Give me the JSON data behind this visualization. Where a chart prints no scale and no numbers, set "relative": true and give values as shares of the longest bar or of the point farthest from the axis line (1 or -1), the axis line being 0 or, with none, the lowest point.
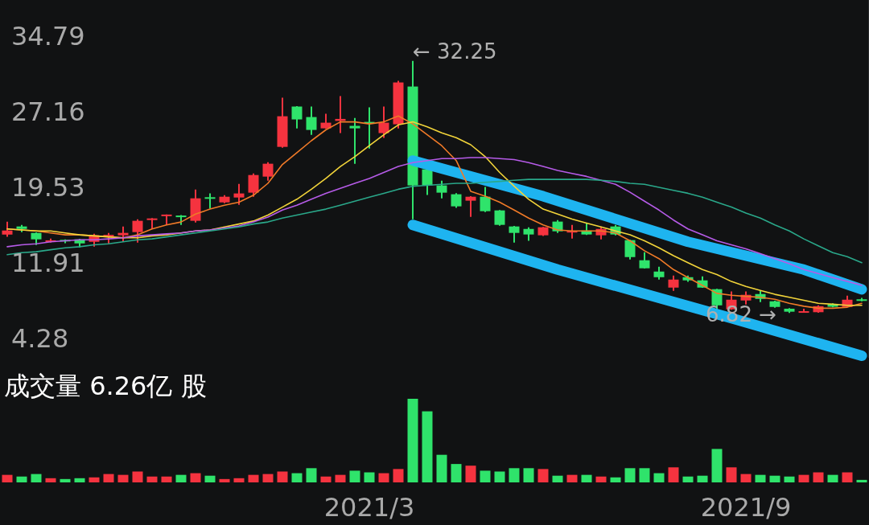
{
  "chart_data": [
    {
      "type": "candlestick",
      "categories": [
        null,
        null,
        null,
        null,
        null,
        null,
        null,
        null,
        null,
        null,
        null,
        null,
        null,
        null,
        null,
        null,
        null,
        null,
        null,
        null,
        null,
        null,
        null,
        null,
        null,
        "2021/3",
        null,
        null,
        null,
        null,
        null,
        null,
        null,
        null,
        null,
        null,
        null,
        null,
        null,
        null,
        null,
        null,
        null,
        null,
        null,
        null,
        null,
        null,
        null,
        null,
        null,
        "2021/9",
        null,
        null,
        null,
        null,
        null,
        null,
        null,
        null
      ],
      "ylim": [
        2.3,
        38.4
      ],
      "yticks": [
        34.79,
        27.16,
        19.53,
        11.91,
        4.28
      ],
      "ohlc": [
        [
          14.73,
          16.03,
          14.5,
          15.14
        ],
        [
          15.55,
          15.71,
          14.98,
          15.3
        ],
        [
          14.9,
          14.95,
          13.68,
          14.25
        ],
        [
          14.1,
          14.33,
          13.92,
          14.15
        ],
        [
          14.2,
          14.25,
          13.85,
          14.1
        ],
        [
          14.25,
          14.3,
          13.44,
          13.84
        ],
        [
          14.0,
          14.82,
          13.52,
          14.66
        ],
        [
          14.6,
          14.9,
          13.84,
          14.7
        ],
        [
          14.66,
          15.55,
          14.0,
          14.9
        ],
        [
          14.98,
          16.28,
          13.92,
          16.12
        ],
        [
          16.2,
          16.4,
          15.3,
          16.36
        ],
        [
          16.6,
          16.77,
          15.7,
          16.75
        ],
        [
          16.65,
          16.7,
          15.7,
          16.5
        ],
        [
          16.12,
          19.28,
          15.95,
          18.39
        ],
        [
          18.5,
          18.88,
          17.34,
          18.4
        ],
        [
          17.98,
          18.7,
          17.9,
          18.55
        ],
        [
          18.47,
          19.85,
          17.74,
          18.88
        ],
        [
          18.96,
          20.9,
          18.55,
          20.74
        ],
        [
          20.58,
          22.04,
          20.17,
          21.88
        ],
        [
          23.58,
          28.54,
          23.5,
          26.67
        ],
        [
          27.65,
          27.7,
          25.45,
          26.35
        ],
        [
          26.59,
          27.65,
          24.8,
          25.29
        ],
        [
          25.45,
          26.92,
          25.4,
          26.02
        ],
        [
          26.2,
          28.7,
          24.97,
          26.4
        ],
        [
          25.7,
          26.5,
          21.88,
          25.45
        ],
        [
          26.1,
          27.57,
          23.42,
          25.95
        ],
        [
          24.97,
          27.65,
          24.48,
          26.02
        ],
        [
          25.86,
          30.24,
          25.45,
          30.08
        ],
        [
          29.67,
          32.25,
          16.28,
          19.69
        ],
        [
          21.31,
          21.4,
          18.72,
          19.69
        ],
        [
          19.69,
          20.17,
          18.39,
          18.96
        ],
        [
          18.8,
          18.9,
          17.42,
          17.58
        ],
        [
          18.15,
          18.6,
          16.52,
          18.55
        ],
        [
          18.55,
          19.53,
          17.0,
          17.09
        ],
        [
          17.17,
          17.2,
          15.63,
          15.71
        ],
        [
          15.55,
          15.6,
          13.92,
          14.9
        ],
        [
          15.3,
          15.47,
          14.1,
          14.74
        ],
        [
          14.66,
          15.5,
          14.6,
          15.47
        ],
        [
          16.04,
          16.2,
          14.9,
          15.06
        ],
        [
          15.0,
          15.7,
          14.33,
          15.1
        ],
        [
          15.14,
          15.87,
          14.7,
          14.74
        ],
        [
          14.66,
          15.55,
          14.25,
          15.3
        ],
        [
          15.55,
          15.7,
          14.66,
          14.74
        ],
        [
          14.17,
          14.2,
          12.22,
          12.46
        ],
        [
          12.14,
          12.95,
          11.3,
          11.33
        ],
        [
          11.0,
          11.49,
          10.19,
          10.43
        ],
        [
          9.38,
          10.6,
          9.06,
          10.19
        ],
        [
          10.43,
          10.6,
          9.97,
          10.11
        ],
        [
          10.11,
          10.52,
          9.35,
          9.38
        ],
        [
          9.22,
          9.25,
          7.0,
          7.59
        ],
        [
          7.19,
          9.0,
          7.15,
          8.16
        ],
        [
          8.08,
          9.0,
          7.67,
          8.65
        ],
        [
          8.73,
          9.05,
          7.92,
          8.24
        ],
        [
          8.0,
          8.05,
          7.35,
          7.43
        ],
        [
          7.25,
          7.3,
          6.82,
          6.95
        ],
        [
          6.95,
          7.25,
          6.9,
          7.0
        ],
        [
          6.9,
          7.6,
          6.85,
          7.5
        ],
        [
          7.7,
          7.8,
          7.4,
          7.45
        ],
        [
          7.43,
          8.57,
          7.4,
          8.16
        ],
        [
          8.2,
          8.35,
          8.0,
          8.12
        ]
      ],
      "colors": [
        "#f5333f",
        "#2fe36b",
        "#2fe36b",
        "#f5333f",
        "#2fe36b",
        "#2fe36b",
        "#f5333f",
        "#f5333f",
        "#f5333f",
        "#f5333f",
        "#f5333f",
        "#f5333f",
        "#2fe36b",
        "#f5333f",
        "#2fe36b",
        "#f5333f",
        "#f5333f",
        "#f5333f",
        "#f5333f",
        "#f5333f",
        "#2fe36b",
        "#2fe36b",
        "#f5333f",
        "#f5333f",
        "#2fe36b",
        "#2fe36b",
        "#f5333f",
        "#f5333f",
        "#2fe36b",
        "#2fe36b",
        "#2fe36b",
        "#2fe36b",
        "#f5333f",
        "#2fe36b",
        "#2fe36b",
        "#2fe36b",
        "#2fe36b",
        "#f5333f",
        "#2fe36b",
        "#f5333f",
        "#2fe36b",
        "#f5333f",
        "#2fe36b",
        "#2fe36b",
        "#2fe36b",
        "#2fe36b",
        "#f5333f",
        "#2fe36b",
        "#2fe36b",
        "#2fe36b",
        "#f5333f",
        "#f5333f",
        "#2fe36b",
        "#2fe36b",
        "#2fe36b",
        "#f5333f",
        "#f5333f",
        "#2fe36b",
        "#f5333f",
        "#2fe36b"
      ],
      "series": [
        {
          "type": "line",
          "color": "#f07a28",
          "values": [
            15.3,
            15.2,
            15.1,
            14.9,
            14.7,
            14.7,
            14.6,
            14.5,
            14.4,
            14.7,
            15.3,
            15.7,
            16.0,
            16.8,
            17.3,
            17.7,
            18.0,
            18.7,
            19.9,
            21.8,
            23.0,
            24.2,
            25.3,
            26.1,
            26.1,
            25.9,
            26.1,
            26.7,
            25.9,
            24.8,
            23.7,
            22.2,
            19.1,
            18.6,
            18.0,
            17.2,
            16.4,
            15.7,
            15.2,
            15.1,
            15.1,
            15.1,
            14.9,
            14.1,
            13.1,
            12.3,
            11.2,
            10.4,
            9.6,
            8.8,
            8.6,
            8.5,
            8.4,
            8.2,
            7.8,
            7.5,
            7.3,
            7.3,
            7.4,
            7.8
          ]
        },
        {
          "type": "line",
          "color": "#f2d43a",
          "values": [
            15.3,
            15.2,
            15.1,
            15.1,
            14.9,
            14.7,
            14.6,
            14.5,
            14.4,
            14.4,
            14.6,
            14.7,
            14.9,
            15.1,
            15.2,
            15.5,
            15.8,
            16.1,
            16.7,
            17.5,
            18.3,
            19.3,
            20.4,
            21.6,
            22.6,
            23.7,
            24.8,
            25.8,
            26.1,
            25.6,
            25.0,
            24.5,
            23.8,
            22.6,
            21.0,
            19.6,
            18.3,
            17.3,
            16.8,
            16.3,
            15.9,
            15.5,
            15.1,
            14.7,
            14.1,
            13.4,
            12.6,
            11.9,
            11.2,
            10.7,
            10.0,
            9.5,
            9.1,
            8.7,
            8.4,
            8.1,
            7.8,
            7.7,
            7.6,
            7.6
          ]
        },
        {
          "type": "line",
          "color": "#b65be8",
          "values": [
            13.5,
            13.7,
            13.8,
            14.0,
            14.1,
            14.2,
            14.2,
            14.3,
            14.4,
            14.6,
            14.7,
            14.8,
            14.9,
            15.1,
            15.2,
            15.4,
            15.6,
            16.0,
            16.5,
            17.2,
            17.7,
            18.3,
            18.9,
            19.4,
            19.9,
            20.4,
            21.0,
            21.6,
            22.0,
            22.2,
            22.4,
            22.4,
            22.5,
            22.5,
            22.4,
            22.3,
            22.0,
            21.6,
            21.2,
            20.9,
            20.6,
            20.2,
            19.8,
            19.0,
            18.1,
            17.2,
            16.2,
            15.3,
            14.7,
            14.1,
            13.7,
            13.3,
            12.8,
            12.3,
            11.8,
            11.2,
            10.8,
            10.4,
            10.0,
            9.6
          ]
        },
        {
          "type": "line",
          "color": "#2aa88a",
          "values": [
            12.7,
            12.9,
            13.0,
            13.2,
            13.4,
            13.5,
            13.7,
            13.8,
            14.0,
            14.2,
            14.3,
            14.5,
            14.7,
            14.9,
            15.1,
            15.3,
            15.5,
            15.8,
            16.0,
            16.4,
            16.7,
            17.0,
            17.3,
            17.7,
            18.1,
            18.5,
            18.9,
            19.3,
            19.6,
            19.7,
            19.8,
            19.9,
            19.9,
            20.0,
            20.1,
            20.2,
            20.3,
            20.3,
            20.3,
            20.3,
            20.3,
            20.2,
            20.1,
            19.9,
            19.8,
            19.5,
            19.2,
            18.9,
            18.5,
            18.0,
            17.5,
            16.9,
            16.4,
            15.7,
            15.1,
            14.3,
            13.6,
            12.9,
            12.5,
            11.9
          ]
        },
        {
          "type": "line",
          "color": "#1eb4f0",
          "values": [
            null,
            null,
            null,
            null,
            null,
            null,
            null,
            null,
            null,
            null,
            null,
            null,
            null,
            null,
            null,
            null,
            null,
            null,
            null,
            null,
            null,
            null,
            null,
            null,
            null,
            null,
            null,
            null,
            22.2,
            null,
            null,
            null,
            null,
            null,
            null,
            null,
            null,
            18.6,
            null,
            null,
            null,
            null,
            null,
            null,
            null,
            null,
            null,
            14.0,
            null,
            null,
            null,
            null,
            null,
            null,
            null,
            11.2,
            null,
            null,
            null,
            9.2
          ]
        },
        {
          "type": "line",
          "color": "#1eb4f0",
          "values": [
            null,
            null,
            null,
            null,
            null,
            null,
            null,
            null,
            null,
            null,
            null,
            null,
            null,
            null,
            null,
            null,
            null,
            null,
            null,
            null,
            null,
            null,
            null,
            null,
            null,
            null,
            null,
            null,
            15.7,
            null,
            null,
            null,
            null,
            null,
            null,
            null,
            null,
            null,
            11.2,
            null,
            null,
            null,
            null,
            null,
            null,
            null,
            null,
            null,
            null,
            null,
            6.3,
            null,
            null,
            null,
            null,
            null,
            null,
            null,
            null,
            2.5
          ]
        }
      ],
      "annotations": [
        "← 32.25",
        "6.82 →"
      ]
    },
    {
      "type": "bar",
      "relative": true,
      "categories": [
        null,
        null,
        null,
        null,
        null,
        null,
        null,
        null,
        null,
        null,
        null,
        null,
        null,
        null,
        null,
        null,
        null,
        null,
        null,
        null,
        null,
        null,
        null,
        null,
        null,
        null,
        null,
        null,
        null,
        null,
        null,
        null,
        null,
        null,
        null,
        null,
        null,
        null,
        null,
        null,
        null,
        null,
        null,
        null,
        null,
        null,
        null,
        null,
        null,
        null,
        null,
        null,
        null,
        null,
        null,
        null,
        null,
        null,
        null,
        null
      ],
      "values": [
        0.09,
        0.07,
        0.1,
        0.05,
        0.04,
        0.05,
        0.06,
        0.1,
        0.09,
        0.13,
        0.07,
        0.07,
        0.09,
        0.11,
        0.08,
        0.04,
        0.05,
        0.09,
        0.1,
        0.13,
        0.11,
        0.17,
        0.07,
        0.09,
        0.14,
        0.12,
        0.11,
        0.16,
        1,
        0.85,
        0.33,
        0.22,
        0.2,
        0.14,
        0.13,
        0.17,
        0.17,
        0.16,
        0.08,
        0.09,
        0.09,
        0.07,
        0.06,
        0.17,
        0.17,
        0.11,
        0.18,
        0.07,
        0.08,
        0.4,
        0.18,
        0.1,
        0.09,
        0.08,
        0.07,
        0.09,
        0.12,
        0.09,
        0.12,
        0.03
      ],
      "colors": [
        "#f5333f",
        "#2fe36b",
        "#2fe36b",
        "#f5333f",
        "#2fe36b",
        "#2fe36b",
        "#f5333f",
        "#f5333f",
        "#f5333f",
        "#f5333f",
        "#f5333f",
        "#f5333f",
        "#2fe36b",
        "#f5333f",
        "#2fe36b",
        "#f5333f",
        "#f5333f",
        "#f5333f",
        "#f5333f",
        "#f5333f",
        "#2fe36b",
        "#2fe36b",
        "#f5333f",
        "#f5333f",
        "#2fe36b",
        "#2fe36b",
        "#f5333f",
        "#f5333f",
        "#2fe36b",
        "#2fe36b",
        "#2fe36b",
        "#2fe36b",
        "#f5333f",
        "#2fe36b",
        "#2fe36b",
        "#2fe36b",
        "#2fe36b",
        "#f5333f",
        "#2fe36b",
        "#f5333f",
        "#2fe36b",
        "#f5333f",
        "#2fe36b",
        "#2fe36b",
        "#2fe36b",
        "#2fe36b",
        "#f5333f",
        "#2fe36b",
        "#2fe36b",
        "#2fe36b",
        "#f5333f",
        "#f5333f",
        "#2fe36b",
        "#2fe36b",
        "#2fe36b",
        "#f5333f",
        "#f5333f",
        "#2fe36b",
        "#f5333f",
        "#2fe36b"
      ],
      "title": "成交量 6.26亿 股"
    }
  ]
}
